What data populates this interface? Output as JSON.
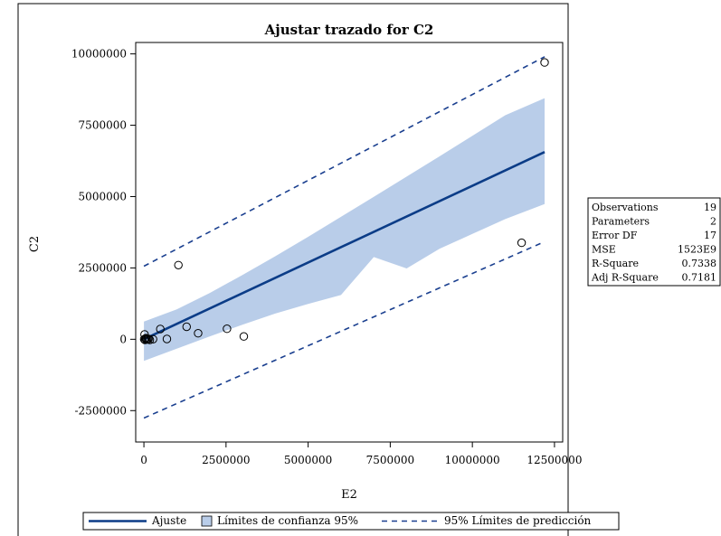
{
  "chart_data": {
    "type": "scatter",
    "title": "Ajustar trazado for C2",
    "xlabel": "E2",
    "ylabel": "C2",
    "xlim": [
      -250000,
      12750000
    ],
    "ylim": [
      -3600000,
      10400000
    ],
    "xticks": [
      0,
      2500000,
      5000000,
      7500000,
      10000000,
      12500000
    ],
    "xtick_labels": [
      "0",
      "2500000",
      "5000000",
      "7500000",
      "10000000",
      "12500000"
    ],
    "yticks": [
      -2500000,
      0,
      2500000,
      5000000,
      7500000,
      10000000
    ],
    "ytick_labels": [
      "-2500000",
      "0",
      "2500000",
      "5000000",
      "7500000",
      "10000000"
    ],
    "points": [
      {
        "x": 12200000,
        "y": 9700000
      },
      {
        "x": 11500000,
        "y": 3380000
      },
      {
        "x": 1050000,
        "y": 2600000
      },
      {
        "x": 2530000,
        "y": 370000
      },
      {
        "x": 3040000,
        "y": 100000
      },
      {
        "x": 1300000,
        "y": 440000
      },
      {
        "x": 1650000,
        "y": 210000
      },
      {
        "x": 500000,
        "y": 360000
      },
      {
        "x": 700000,
        "y": 10000
      },
      {
        "x": 280000,
        "y": 0
      },
      {
        "x": 180000,
        "y": -20000
      },
      {
        "x": 20000,
        "y": 170000
      },
      {
        "x": 50000,
        "y": 20000
      },
      {
        "x": 80000,
        "y": -10000
      },
      {
        "x": 110000,
        "y": 0
      },
      {
        "x": 30000,
        "y": -20000
      },
      {
        "x": 10000,
        "y": 0
      },
      {
        "x": 60000,
        "y": 40000
      },
      {
        "x": 140000,
        "y": 10000
      }
    ],
    "fit_line": {
      "x": [
        0,
        12200000
      ],
      "y": [
        0,
        6560000
      ]
    },
    "confidence_band": {
      "x": [
        0,
        1000000,
        2000000,
        3000000,
        4000000,
        5000000,
        6000000,
        7000000,
        8000000,
        9000000,
        10000000,
        11000000,
        12200000
      ],
      "upper": [
        620000,
        1050000,
        1620000,
        2250000,
        2910000,
        3590000,
        4290000,
        4990000,
        5700000,
        6410000,
        7130000,
        7850000,
        8450000
      ],
      "lower": [
        -760000,
        -330000,
        100000,
        510000,
        900000,
        1240000,
        1550000,
        2880000,
        2480000,
        3170000,
        3690000,
        4210000,
        4740000
      ]
    },
    "prediction_band": {
      "x": [
        0,
        12200000
      ],
      "upper": [
        2560000,
        9900000
      ],
      "lower": [
        -2760000,
        3420000
      ]
    },
    "colors": {
      "fit": "#0b3c87",
      "band": "#b9cde9",
      "prediction": "#1a3f8f",
      "point": "#000000"
    },
    "stats": [
      {
        "label": "Observations",
        "value": "19"
      },
      {
        "label": "Parameters",
        "value": "2"
      },
      {
        "label": "Error DF",
        "value": "17"
      },
      {
        "label": "MSE",
        "value": "1523E9"
      },
      {
        "label": "R-Square",
        "value": "0.7338"
      },
      {
        "label": "Adj R-Square",
        "value": "0.7181"
      }
    ],
    "legend": {
      "placement": "bottom",
      "entries": [
        {
          "label": "Ajuste",
          "kind": "line"
        },
        {
          "label": "Límites de confianza 95%",
          "kind": "band"
        },
        {
          "label": "95% Límites de predicción",
          "kind": "dashed"
        }
      ]
    },
    "grid": false
  }
}
